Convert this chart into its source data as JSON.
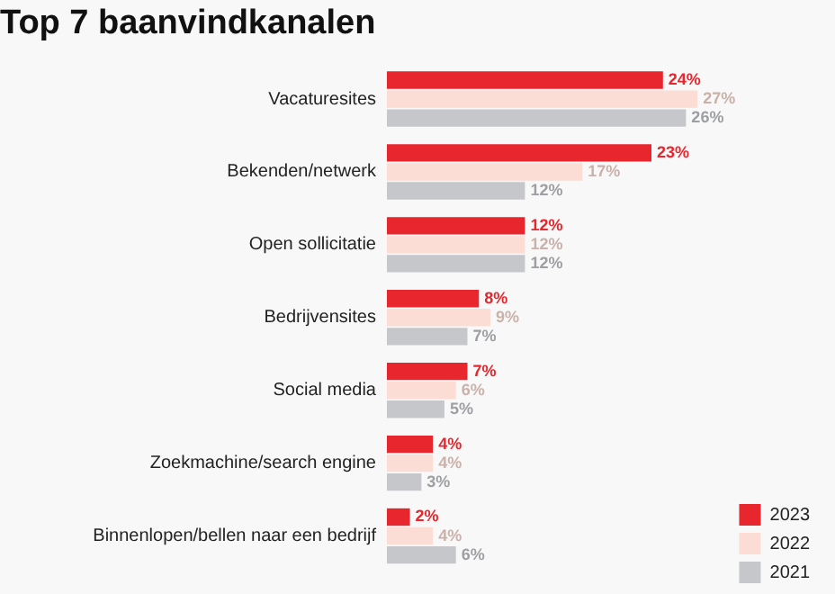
{
  "chart_data": {
    "type": "bar",
    "orientation": "horizontal",
    "title": "Top 7 baanvindkanalen",
    "categories": [
      "Vacaturesites",
      "Bekenden/netwerk",
      "Open sollicitatie",
      "Bedrijvensites",
      "Social media",
      "Zoekmachine/search engine",
      "Binnenlopen/bellen naar een bedrijf"
    ],
    "series": [
      {
        "name": "2023",
        "color": "#e8262e",
        "values": [
          24,
          23,
          12,
          8,
          7,
          4,
          2
        ],
        "value_labels": [
          "24%",
          "23%",
          "12%",
          "8%",
          "7%",
          "4%",
          "2%"
        ]
      },
      {
        "name": "2022",
        "color": "#fcddd5",
        "values": [
          27,
          17,
          12,
          9,
          6,
          4,
          4
        ],
        "value_labels": [
          "27%",
          "17%",
          "12%",
          "9%",
          "6%",
          "4%",
          "4%"
        ]
      },
      {
        "name": "2021",
        "color": "#c6c7cb",
        "values": [
          26,
          12,
          12,
          7,
          5,
          3,
          6
        ],
        "value_labels": [
          "26%",
          "12%",
          "12%",
          "7%",
          "5%",
          "3%",
          "6%"
        ]
      }
    ],
    "legend": "bottom right",
    "grid": false,
    "tick_labels": "y"
  }
}
